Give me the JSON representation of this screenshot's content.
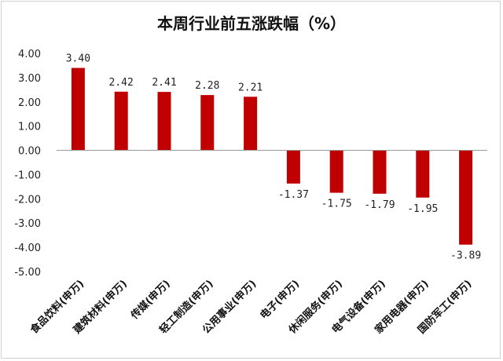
{
  "chart_data": {
    "type": "bar",
    "title": "本周行业前五涨跌幅（%）",
    "categories": [
      "食品饮料(申万)",
      "建筑材料(申万)",
      "传媒(申万)",
      "轻工制造(申万)",
      "公用事业(申万)",
      "电子(申万)",
      "休闲服务(申万)",
      "电气设备(申万)",
      "家用电器(申万)",
      "国防军工(申万)"
    ],
    "values": [
      3.4,
      2.42,
      2.41,
      2.28,
      2.21,
      -1.37,
      -1.75,
      -1.79,
      -1.95,
      -3.89
    ],
    "value_labels": [
      "3.40",
      "2.42",
      "2.41",
      "2.28",
      "2.21",
      "-1.37",
      "-1.75",
      "-1.79",
      "-1.95",
      "-3.89"
    ],
    "yticks": [
      "4.00",
      "3.00",
      "2.00",
      "1.00",
      "0.00",
      "-1.00",
      "-2.00",
      "-3.00",
      "-4.00",
      "-5.00"
    ],
    "ylim": [
      -5,
      4
    ],
    "xlabel": "",
    "ylabel": "",
    "bar_color": "#c00000",
    "grid": false,
    "legend": "none"
  }
}
